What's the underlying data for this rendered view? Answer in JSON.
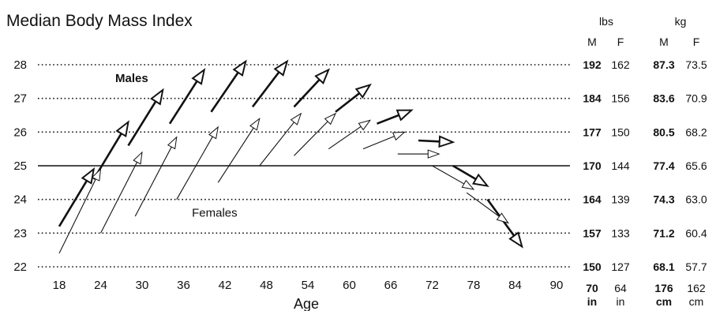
{
  "chart_data": {
    "type": "line",
    "title": "Median Body Mass Index",
    "xlabel": "Age",
    "ylabel": "",
    "xlim": [
      14,
      93
    ],
    "ylim": [
      22,
      28
    ],
    "x_ticks": [
      "18",
      "24",
      "30",
      "36",
      "42",
      "48",
      "54",
      "60",
      "66",
      "72",
      "78",
      "84",
      "90"
    ],
    "y_ticks": [
      "22",
      "23",
      "24",
      "25",
      "26",
      "27",
      "28"
    ],
    "grid": "dotted horizontal",
    "reference_line_y": 25,
    "series": [
      {
        "name": "Males",
        "color": "#111111",
        "arrows": [
          {
            "x1": 18,
            "y1": 23.2,
            "x2": 23,
            "y2": 24.9
          },
          {
            "x1": 23,
            "y1": 24.6,
            "x2": 28,
            "y2": 26.3
          },
          {
            "x1": 28,
            "y1": 25.6,
            "x2": 33,
            "y2": 27.25
          },
          {
            "x1": 34,
            "y1": 26.25,
            "x2": 39,
            "y2": 27.85
          },
          {
            "x1": 40,
            "y1": 26.6,
            "x2": 45,
            "y2": 28.1
          },
          {
            "x1": 46,
            "y1": 26.75,
            "x2": 51,
            "y2": 28.1
          },
          {
            "x1": 52,
            "y1": 26.75,
            "x2": 57,
            "y2": 27.85
          },
          {
            "x1": 58,
            "y1": 26.6,
            "x2": 63,
            "y2": 27.4
          },
          {
            "x1": 64,
            "y1": 26.25,
            "x2": 69,
            "y2": 26.65
          },
          {
            "x1": 70,
            "y1": 25.75,
            "x2": 75,
            "y2": 25.7
          },
          {
            "x1": 75,
            "y1": 25.0,
            "x2": 80,
            "y2": 24.4
          },
          {
            "x1": 80,
            "y1": 24.0,
            "x2": 85,
            "y2": 22.6
          }
        ]
      },
      {
        "name": "Females",
        "color": "#111111",
        "arrows": [
          {
            "x1": 18,
            "y1": 22.4,
            "x2": 24,
            "y2": 24.9
          },
          {
            "x1": 24,
            "y1": 23.0,
            "x2": 30,
            "y2": 25.4
          },
          {
            "x1": 29,
            "y1": 23.5,
            "x2": 35,
            "y2": 25.85
          },
          {
            "x1": 35,
            "y1": 24.0,
            "x2": 41,
            "y2": 26.15
          },
          {
            "x1": 41,
            "y1": 24.5,
            "x2": 47,
            "y2": 26.4
          },
          {
            "x1": 47,
            "y1": 25.0,
            "x2": 53,
            "y2": 26.55
          },
          {
            "x1": 52,
            "y1": 25.3,
            "x2": 58,
            "y2": 26.55
          },
          {
            "x1": 57,
            "y1": 25.5,
            "x2": 63,
            "y2": 26.35
          },
          {
            "x1": 62,
            "y1": 25.5,
            "x2": 68,
            "y2": 26.0
          },
          {
            "x1": 67,
            "y1": 25.35,
            "x2": 73,
            "y2": 25.35
          },
          {
            "x1": 72,
            "y1": 25.0,
            "x2": 78,
            "y2": 24.3
          },
          {
            "x1": 77,
            "y1": 24.2,
            "x2": 83,
            "y2": 23.3
          }
        ]
      }
    ],
    "annotations": [
      {
        "text": "Males",
        "x": 28.5,
        "y": 27.6,
        "bold": true
      },
      {
        "text": "Females",
        "x": 40.5,
        "y": 23.6,
        "bold": false
      }
    ],
    "right_table": {
      "units_header": [
        {
          "text": "lbs"
        },
        {
          "text": "kg"
        }
      ],
      "sex_header": [
        "M",
        "F",
        "M",
        "F"
      ],
      "rows": [
        {
          "bmi": 28,
          "values": [
            "192",
            "162",
            "87.3",
            "73.5"
          ]
        },
        {
          "bmi": 27,
          "values": [
            "184",
            "156",
            "83.6",
            "70.9"
          ]
        },
        {
          "bmi": 26,
          "values": [
            "177",
            "150",
            "80.5",
            "68.2"
          ]
        },
        {
          "bmi": 25,
          "values": [
            "170",
            "144",
            "77.4",
            "65.6"
          ]
        },
        {
          "bmi": 24,
          "values": [
            "164",
            "139",
            "74.3",
            "63.0"
          ]
        },
        {
          "bmi": 23,
          "values": [
            "157",
            "133",
            "71.2",
            "60.4"
          ]
        },
        {
          "bmi": 22,
          "values": [
            "150",
            "127",
            "68.1",
            "57.7"
          ]
        }
      ],
      "height_footer": {
        "numbers": [
          "70",
          "64",
          "176",
          "162"
        ],
        "units": [
          "in",
          "in",
          "cm",
          "cm"
        ]
      }
    }
  }
}
